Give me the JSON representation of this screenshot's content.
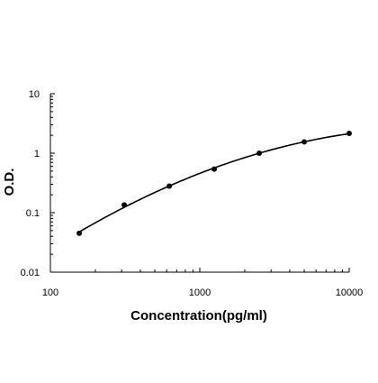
{
  "chart_data": {
    "type": "scatter",
    "title": "",
    "xlabel": "Concentration(pg/ml)",
    "ylabel": "O.D.",
    "x_scale": "log",
    "y_scale": "log",
    "xlim": [
      100,
      10000
    ],
    "ylim": [
      0.01,
      10
    ],
    "x_ticks": [
      100,
      1000,
      10000
    ],
    "x_tick_labels": [
      "100",
      "1000",
      "10000"
    ],
    "y_ticks": [
      0.01,
      0.1,
      1,
      10
    ],
    "y_tick_labels": [
      "0.01",
      "0.1",
      "1",
      "10"
    ],
    "grid": false,
    "legend": "none",
    "fit_curve": true,
    "series": [
      {
        "x": [
          156,
          312,
          625,
          1250,
          2500,
          5000,
          10000
        ],
        "y": [
          0.045,
          0.135,
          0.28,
          0.54,
          1.0,
          1.55,
          2.15
        ]
      }
    ],
    "colors": {
      "marker": "#000000",
      "line": "#000000",
      "axis": "#000000"
    }
  }
}
